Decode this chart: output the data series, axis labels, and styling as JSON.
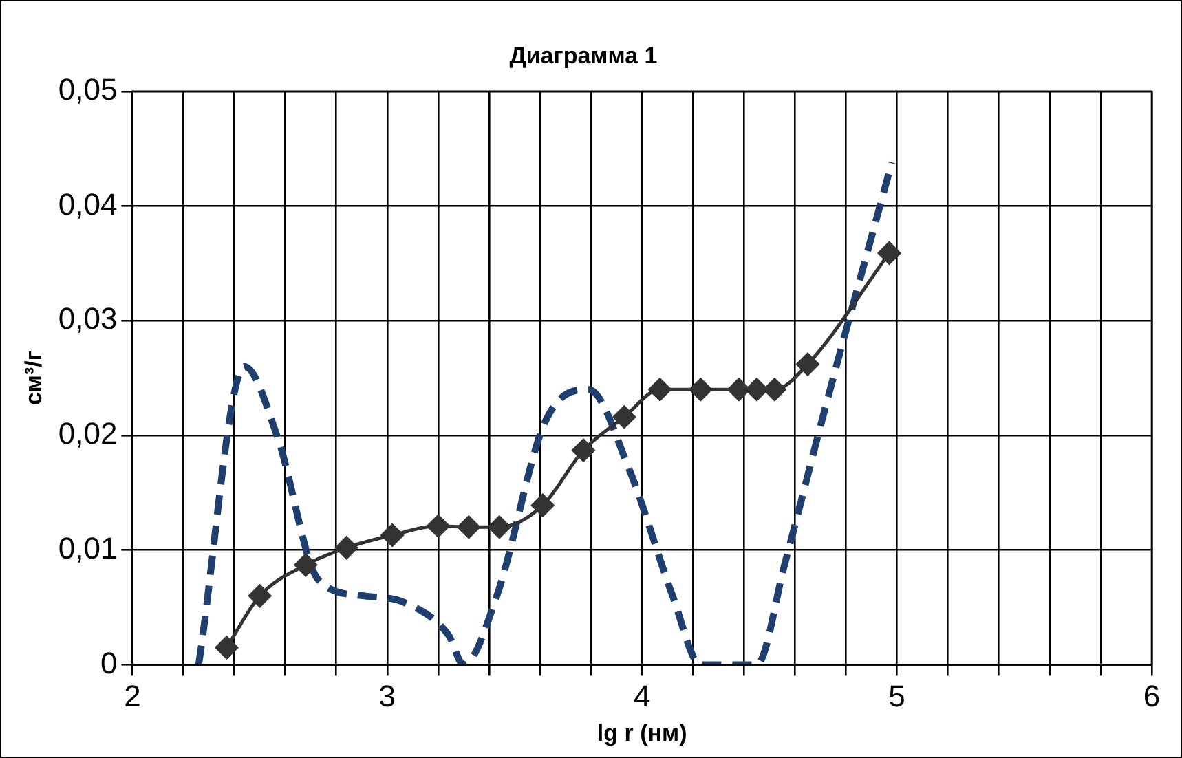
{
  "chart_data": {
    "type": "line",
    "title": "Диаграмма 1",
    "xlabel": "lg r (нм)",
    "ylabel": "см³/г",
    "xlim": [
      2,
      6
    ],
    "xticks": [
      2,
      {
        "value": 2.2,
        "label": null
      },
      {
        "value": 2.4,
        "label": null
      },
      {
        "value": 2.6,
        "label": null
      },
      {
        "value": 2.8,
        "label": null
      },
      3,
      {
        "value": 3.2,
        "label": null
      },
      {
        "value": 3.4,
        "label": null
      },
      {
        "value": 3.6,
        "label": null
      },
      {
        "value": 3.8,
        "label": null
      },
      4,
      {
        "value": 4.2,
        "label": null
      },
      {
        "value": 4.4,
        "label": null
      },
      {
        "value": 4.6,
        "label": null
      },
      {
        "value": 4.8,
        "label": null
      },
      5,
      {
        "value": 5.2,
        "label": null
      },
      {
        "value": 5.4,
        "label": null
      },
      {
        "value": 5.6,
        "label": null
      },
      {
        "value": 5.8,
        "label": null
      },
      6
    ],
    "ylim": [
      0,
      0.05
    ],
    "yticks": [
      0,
      {
        "value": 0.01,
        "label": "0,01"
      },
      {
        "value": 0.02,
        "label": "0,02"
      },
      {
        "value": 0.03,
        "label": "0,03"
      },
      {
        "value": 0.04,
        "label": "0,04"
      },
      {
        "value": 0.05,
        "label": "0,05"
      }
    ],
    "grid": true,
    "legend": false,
    "series": [
      {
        "type": "line",
        "color": "#333333",
        "marker": "diamond",
        "line_style": "solid",
        "x": [
          2.37,
          2.5,
          2.68,
          2.84,
          3.02,
          3.2,
          3.32,
          3.44,
          3.61,
          3.77,
          3.93,
          4.07,
          4.23,
          4.38,
          4.45,
          4.52,
          4.65,
          4.97
        ],
        "values": [
          0.0015,
          0.006,
          0.0087,
          0.0102,
          0.0113,
          0.0121,
          0.012,
          0.012,
          0.0139,
          0.0187,
          0.0216,
          0.024,
          0.024,
          0.024,
          0.024,
          0.024,
          0.0262,
          0.0359
        ]
      },
      {
        "type": "line",
        "color": "#1f3f6e",
        "marker": "none",
        "line_style": "dashed",
        "x": [
          2.26,
          2.44,
          2.57,
          2.73,
          2.91,
          3.07,
          3.24,
          3.3,
          3.43,
          3.62,
          3.79,
          3.95,
          4.12,
          4.23,
          4.45,
          4.56,
          4.72,
          4.98
        ],
        "values": [
          0,
          0.026,
          0.0198,
          0.0074,
          0.006,
          0.0054,
          0.0026,
          0,
          0.006,
          0.0212,
          0.024,
          0.017,
          0.006,
          0,
          0,
          0.0088,
          0.0225,
          0.0438
        ]
      }
    ]
  }
}
